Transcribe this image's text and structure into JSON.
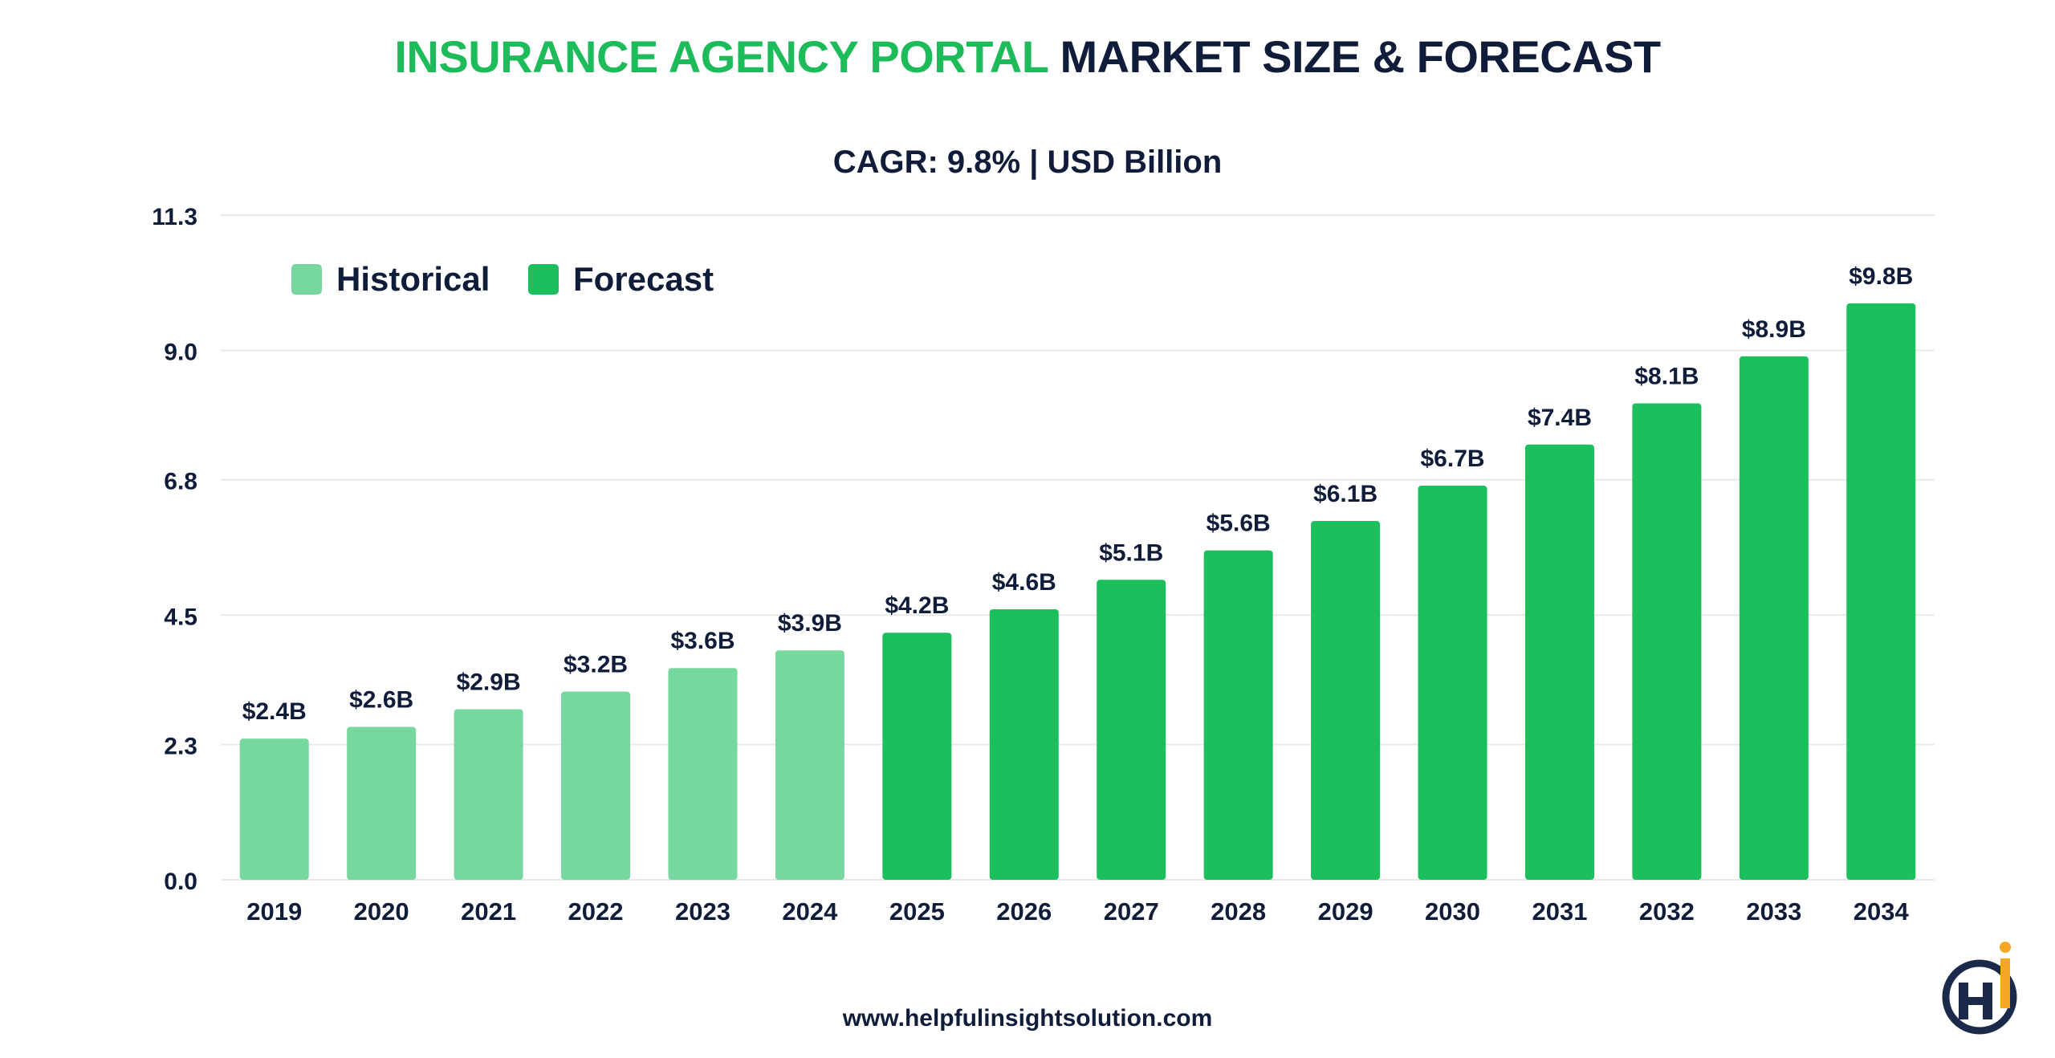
{
  "title": {
    "highlight": "INSURANCE AGENCY PORTAL",
    "rest": "MARKET SIZE & FORECAST"
  },
  "footer": "www.helpfulinsightsolution.com",
  "colors": {
    "historical": "#76d89e",
    "forecast": "#1bbf5c",
    "text": "#0f1d3a",
    "grid": "#e8e8e8"
  },
  "chart_data": {
    "type": "bar",
    "subtitle": "CAGR: 9.8% | USD Billion",
    "categories": [
      "2019",
      "2020",
      "2021",
      "2022",
      "2023",
      "2024",
      "2025",
      "2026",
      "2027",
      "2028",
      "2029",
      "2030",
      "2031",
      "2032",
      "2033",
      "2034"
    ],
    "series": [
      {
        "name": "Historical",
        "values": [
          2.4,
          2.6,
          2.9,
          3.2,
          3.6,
          3.9,
          null,
          null,
          null,
          null,
          null,
          null,
          null,
          null,
          null,
          null
        ],
        "labels": [
          "$2.4B",
          "$2.6B",
          "$2.9B",
          "$3.2B",
          "$3.6B",
          "$3.9B",
          null,
          null,
          null,
          null,
          null,
          null,
          null,
          null,
          null,
          null
        ]
      },
      {
        "name": "Forecast",
        "values": [
          null,
          null,
          null,
          null,
          null,
          null,
          4.2,
          4.6,
          5.1,
          5.6,
          6.1,
          6.7,
          7.4,
          8.1,
          8.9,
          9.8
        ],
        "labels": [
          null,
          null,
          null,
          null,
          null,
          null,
          "$4.2B",
          "$4.6B",
          "$5.1B",
          "$5.6B",
          "$6.1B",
          "$6.7B",
          "$7.4B",
          "$8.1B",
          "$8.9B",
          "$9.8B"
        ]
      }
    ],
    "yticks": [
      "0.0",
      "2.3",
      "4.5",
      "6.8",
      "9.0",
      "11.3"
    ],
    "ylim": [
      0,
      11.3
    ],
    "grid": true,
    "legend": "top-left"
  }
}
